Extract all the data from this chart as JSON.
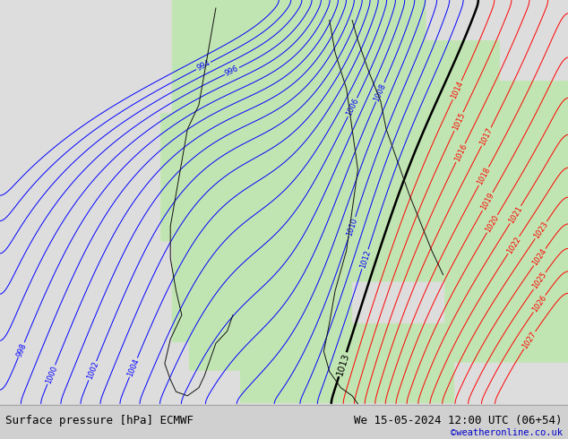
{
  "title_left": "Surface pressure [hPa] ECMWF",
  "title_right": "We 15-05-2024 12:00 UTC (06+54)",
  "copyright": "©weatheronline.co.uk",
  "fig_width": 6.34,
  "fig_height": 4.9,
  "dpi": 100,
  "bottom_text_color": "#000000",
  "copyright_color": "#0000cc"
}
